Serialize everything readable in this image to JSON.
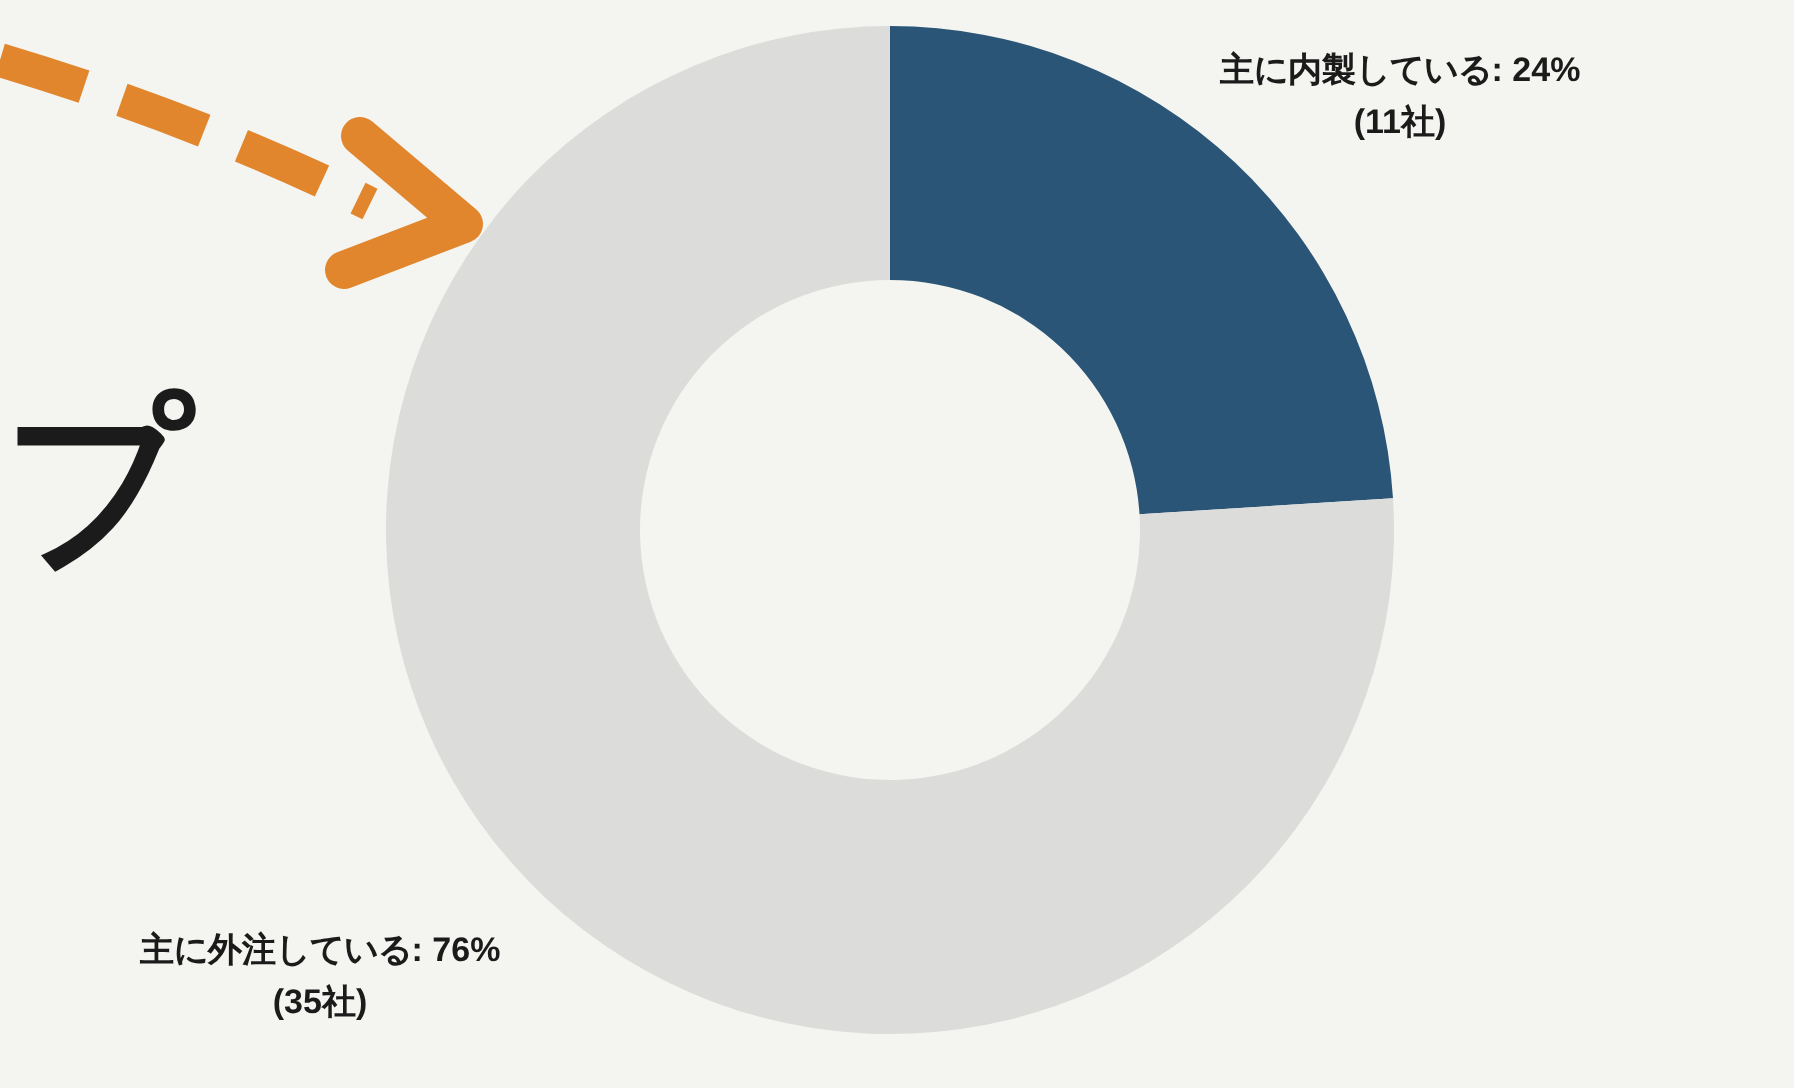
{
  "chart_data": {
    "type": "donut",
    "categories": [
      "主に内製している",
      "主に外注している"
    ],
    "values": [
      24,
      76
    ],
    "colors": [
      "#2b5577",
      "#dcdcdb"
    ],
    "value_labels": [
      "24%\n(11社)",
      "76%\n(35社)"
    ],
    "annotations": [
      "プ"
    ],
    "legend": false
  }
}
